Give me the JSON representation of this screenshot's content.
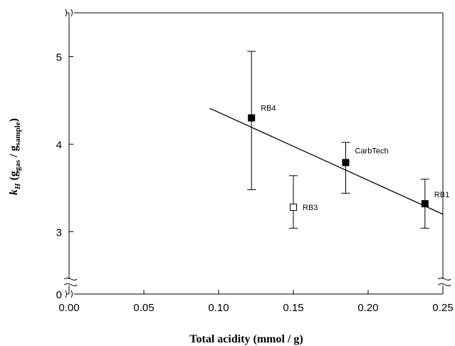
{
  "chart_data": {
    "type": "scatter",
    "xlabel": "Total acidity (mmol / g)",
    "ylabel": {
      "base": "k",
      "base_sub": "H",
      "open": " (g",
      "sub1": "gas",
      "mid": " / g",
      "sub2": "sample",
      "close": ")"
    },
    "xlim": [
      0.0,
      0.25
    ],
    "y_break": {
      "low": 0,
      "high_start": 2.5
    },
    "ylim": [
      2.5,
      5.5
    ],
    "x_ticks": [
      {
        "value": 0.0,
        "label": "0.00"
      },
      {
        "value": 0.05,
        "label": "0.05"
      },
      {
        "value": 0.1,
        "label": "0.10"
      },
      {
        "value": 0.15,
        "label": "0.15"
      },
      {
        "value": 0.2,
        "label": "0.20"
      },
      {
        "value": 0.25,
        "label": "0.25"
      }
    ],
    "y_ticks": [
      {
        "value": 0,
        "label": "0"
      },
      {
        "value": 3,
        "label": "3"
      },
      {
        "value": 4,
        "label": "4"
      },
      {
        "value": 5,
        "label": "5"
      }
    ],
    "points": [
      {
        "label": "RB4",
        "x": 0.122,
        "y": 4.3,
        "y_err_low": 3.48,
        "y_err_high": 5.06,
        "filled": true
      },
      {
        "label": "RB3",
        "x": 0.15,
        "y": 3.28,
        "y_err_low": 3.04,
        "y_err_high": 3.64,
        "filled": false
      },
      {
        "label": "CarbTech",
        "x": 0.185,
        "y": 3.79,
        "y_err_low": 3.44,
        "y_err_high": 4.02,
        "filled": true
      },
      {
        "label": "RB1",
        "x": 0.238,
        "y": 3.32,
        "y_err_low": 3.04,
        "y_err_high": 3.6,
        "filled": true
      }
    ],
    "fit_line": {
      "x": [
        0.094,
        0.25
      ],
      "y": [
        4.41,
        3.2
      ]
    },
    "grid": false,
    "legend": "none"
  }
}
